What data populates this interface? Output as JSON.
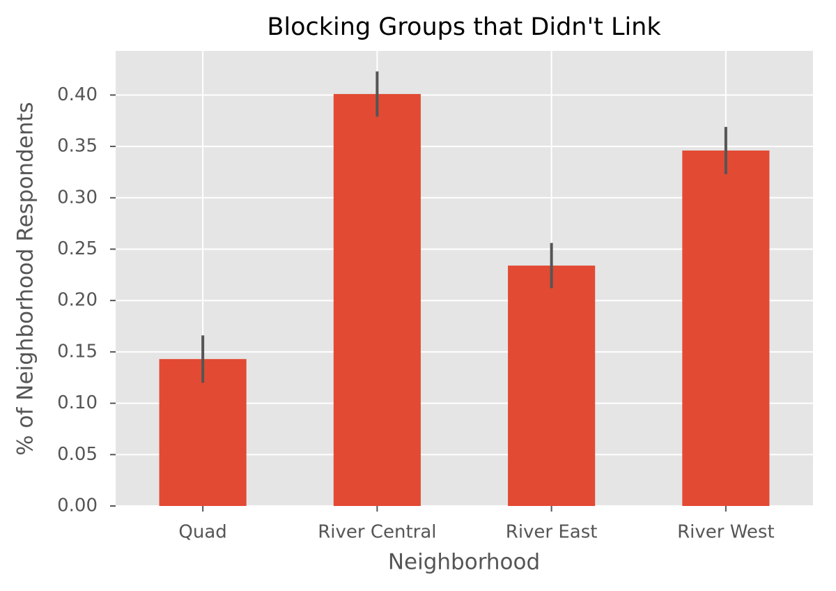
{
  "chart_data": {
    "type": "bar",
    "title": "Blocking Groups that Didn't Link",
    "xlabel": "Neighborhood",
    "ylabel": "% of Neighborhood Respondents",
    "categories": [
      "Quad",
      "River Central",
      "River East",
      "River West"
    ],
    "values": [
      0.143,
      0.401,
      0.234,
      0.346
    ],
    "errors": [
      0.023,
      0.022,
      0.022,
      0.023
    ],
    "color": "#E24A33",
    "error_color": "#555555",
    "ylim": [
      0,
      0.443
    ],
    "yticks": [
      {
        "value": 0,
        "label": "0.00"
      },
      {
        "value": 0.05,
        "label": "0.05"
      },
      {
        "value": 0.1,
        "label": "0.10"
      },
      {
        "value": 0.15,
        "label": "0.15"
      },
      {
        "value": 0.2,
        "label": "0.20"
      },
      {
        "value": 0.25,
        "label": "0.25"
      },
      {
        "value": 0.3,
        "label": "0.30"
      },
      {
        "value": 0.35,
        "label": "0.35"
      },
      {
        "value": 0.4,
        "label": "0.40"
      }
    ],
    "grid": true
  }
}
